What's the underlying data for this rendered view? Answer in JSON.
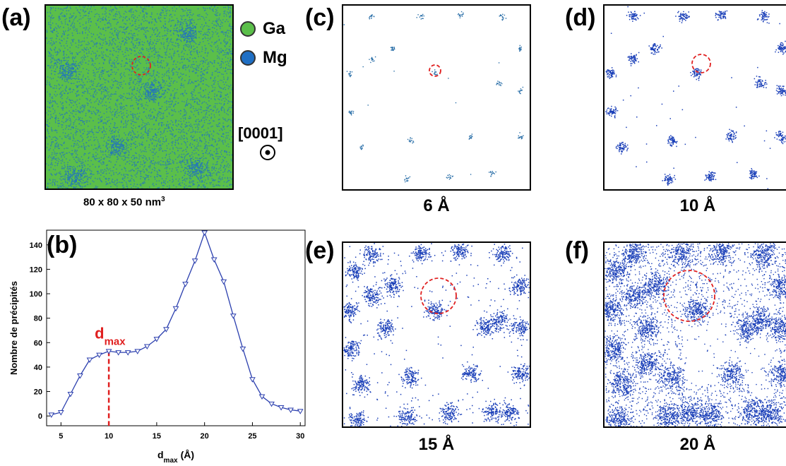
{
  "panel_labels": {
    "a": "(a)",
    "b": "(b)",
    "c": "(c)",
    "d": "(d)",
    "e": "(e)",
    "f": "(f)"
  },
  "legend": [
    {
      "label": "Ga",
      "color": "#5bbf4a"
    },
    {
      "label": "Mg",
      "color": "#1f6fc4"
    }
  ],
  "volume": {
    "text": "80 x 80 x 50 nm",
    "exponent": "3"
  },
  "direction": {
    "label": "[0001]",
    "icon": "out-of-plane-dot-icon"
  },
  "captions": {
    "c": "6 Å",
    "d": "10 Å",
    "e": "15 Å",
    "f": "20 Å"
  },
  "colors": {
    "ga": "#5bbf4a",
    "mg": "#1f6fc4",
    "mg_dark": "#1a3fb8",
    "highlight": "#e02020",
    "curve": "#2b3fae"
  },
  "chart_data": {
    "type": "line",
    "ylabel": "Nombre de précipités",
    "xlabel_main": "d",
    "xlabel_sub": "max",
    "xlabel_unit": "(Å)",
    "xlim": [
      3.5,
      30.5
    ],
    "ylim": [
      -8,
      152
    ],
    "xticks": [
      5,
      10,
      15,
      20,
      25,
      30
    ],
    "yticks": [
      0,
      20,
      40,
      60,
      80,
      100,
      120,
      140
    ],
    "x": [
      4,
      5,
      6,
      7,
      8,
      9,
      10,
      11,
      12,
      13,
      14,
      15,
      16,
      17,
      18,
      19,
      20,
      21,
      22,
      23,
      24,
      25,
      26,
      27,
      28,
      29,
      30
    ],
    "series": [
      {
        "values": [
          1,
          3,
          18,
          33,
          46,
          50,
          53,
          52,
          52,
          53,
          57,
          63,
          71,
          88,
          108,
          127,
          150,
          128,
          110,
          82,
          55,
          30,
          16,
          10,
          7,
          5,
          4
        ]
      }
    ],
    "annotation": {
      "x": 10,
      "y": 53,
      "label_main": "d",
      "label_sub": "max"
    }
  }
}
